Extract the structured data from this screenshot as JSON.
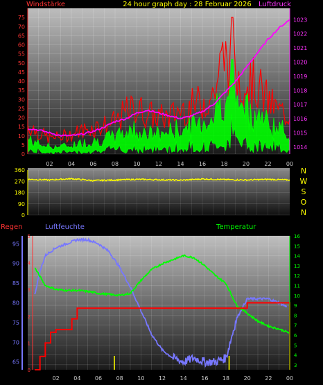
{
  "header": {
    "title": "24 hour graph day : 28 Februar 2026",
    "left_label": "Windstärke",
    "right_label": "Luftdruck"
  },
  "colors": {
    "wind_gust": "#ff0000",
    "wind_avg": "#00ff00",
    "pressure": "#ff00ff",
    "direction": "#ffff00",
    "rain": "#ff0000",
    "humidity": "#7777ff",
    "temperature": "#00ff00",
    "plot_bg_top": "#bdbdbd",
    "plot_bg_bottom": "#1a1a1a"
  },
  "chart_data": [
    {
      "type": "line",
      "x_tick_labels": [
        "02",
        "04",
        "06",
        "08",
        "10",
        "12",
        "14",
        "16",
        "18",
        "20",
        "22",
        "00"
      ],
      "left_axis": {
        "ylim": [
          0,
          80
        ],
        "ticks": [
          "0",
          "5",
          "10",
          "15",
          "20",
          "25",
          "30",
          "35",
          "40",
          "45",
          "50",
          "55",
          "60",
          "65",
          "70",
          "75"
        ]
      },
      "right_axis": {
        "ylim": [
          1013.5,
          1023.8
        ],
        "ticks": [
          "1014",
          "1015",
          "1016",
          "1017",
          "1018",
          "1019",
          "1020",
          "1021",
          "1022",
          "1023"
        ]
      },
      "series": [
        {
          "name": "Windstärke",
          "x_hours": [
            0,
            1,
            2,
            3,
            4,
            5,
            6,
            7,
            8,
            9,
            10,
            11,
            12,
            13,
            14,
            15,
            16,
            17,
            18,
            19,
            20,
            21,
            22,
            23,
            24
          ],
          "gust_max": [
            22,
            16,
            12,
            13,
            15,
            18,
            20,
            22,
            24,
            32,
            35,
            30,
            28,
            28,
            34,
            36,
            40,
            45,
            75,
            60,
            56,
            52,
            40,
            32,
            30
          ],
          "avg": [
            12,
            8,
            6,
            6,
            7,
            9,
            10,
            12,
            14,
            18,
            20,
            16,
            16,
            18,
            20,
            22,
            26,
            30,
            50,
            45,
            38,
            32,
            25,
            20,
            16
          ]
        },
        {
          "name": "Luftdruck",
          "x_hours": [
            0,
            1,
            2,
            3,
            4,
            5,
            6,
            7,
            8,
            9,
            10,
            11,
            12,
            13,
            14,
            15,
            16,
            17,
            18,
            19,
            20,
            21,
            22,
            23,
            24
          ],
          "values": [
            1015.3,
            1015.2,
            1015.0,
            1014.8,
            1014.8,
            1014.9,
            1015.1,
            1015.4,
            1015.8,
            1016.0,
            1016.4,
            1016.6,
            1016.4,
            1016.2,
            1016.0,
            1016.2,
            1016.5,
            1017.0,
            1017.8,
            1018.6,
            1019.6,
            1020.6,
            1021.6,
            1022.4,
            1023.0
          ]
        }
      ]
    },
    {
      "type": "line",
      "left_axis": {
        "ylim": [
          0,
          360
        ],
        "ticks": [
          "0",
          "90",
          "180",
          "270",
          "360"
        ]
      },
      "direction_labels": [
        "N",
        "W",
        "S",
        "O",
        "N"
      ],
      "series": [
        {
          "name": "direction",
          "x_hours": [
            0,
            2,
            4,
            6,
            8,
            10,
            12,
            14,
            16,
            18,
            20,
            22,
            24
          ],
          "values": [
            285,
            280,
            290,
            275,
            280,
            285,
            282,
            278,
            288,
            283,
            280,
            285,
            280
          ]
        }
      ]
    },
    {
      "type": "line",
      "series_labels": {
        "rain": "Regen",
        "humidity": "Luftfeuchte",
        "temperature": "Temperatur"
      },
      "rain_axis": {
        "ylim": [
          0,
          5
        ],
        "ticks": [
          "0",
          "1",
          "2",
          "3",
          "4",
          "5"
        ]
      },
      "humidity_axis": {
        "ylim": [
          63,
          97
        ],
        "ticks": [
          "65",
          "70",
          "75",
          "80",
          "85",
          "90",
          "95"
        ]
      },
      "temperature_axis": {
        "ylim": [
          2.5,
          16
        ],
        "ticks": [
          "3",
          "4",
          "5",
          "6",
          "7",
          "8",
          "9",
          "10",
          "11",
          "12",
          "13",
          "14",
          "15",
          "16"
        ]
      },
      "series": [
        {
          "name": "rain",
          "x_hours": [
            0,
            0.5,
            1,
            1.5,
            2,
            3,
            3.5,
            4,
            5,
            6,
            8,
            10,
            12,
            14,
            16,
            18,
            19,
            20,
            22,
            23.6,
            24
          ],
          "values": [
            0,
            0.5,
            1.0,
            1.4,
            1.5,
            1.5,
            1.9,
            2.3,
            2.3,
            2.3,
            2.3,
            2.3,
            2.3,
            2.3,
            2.3,
            2.3,
            2.3,
            2.5,
            2.5,
            2.5,
            0
          ]
        },
        {
          "name": "humidity",
          "x_hours": [
            0,
            0.5,
            1,
            2,
            3,
            4,
            5,
            6,
            7,
            8,
            9,
            10,
            11,
            12,
            13,
            14,
            15,
            16,
            17,
            18,
            19,
            20,
            21,
            22,
            23,
            23.7
          ],
          "values": [
            82,
            88,
            92,
            94,
            95,
            96,
            96,
            95,
            93,
            89,
            84,
            78,
            72,
            68,
            66,
            65,
            66,
            65,
            65,
            66,
            76,
            81,
            81,
            81,
            80,
            79
          ]
        },
        {
          "name": "temperature",
          "x_hours": [
            0,
            1,
            2,
            3,
            4,
            5,
            6,
            7,
            8,
            9,
            10,
            11,
            12,
            13,
            14,
            15,
            16,
            17,
            18,
            19,
            20,
            21,
            22,
            23,
            24
          ],
          "values": [
            12.8,
            11.0,
            10.6,
            10.5,
            10.5,
            10.4,
            10.2,
            10.1,
            10.0,
            10.2,
            11.5,
            12.6,
            13.2,
            13.6,
            14.0,
            13.8,
            13.0,
            12.0,
            11.2,
            9.0,
            8.2,
            7.4,
            6.9,
            6.6,
            6.2
          ]
        }
      ]
    }
  ],
  "bottom_x_tick_labels": [
    "02",
    "04",
    "06",
    "08",
    "10",
    "12",
    "14",
    "16",
    "18",
    "20",
    "22",
    "00"
  ]
}
